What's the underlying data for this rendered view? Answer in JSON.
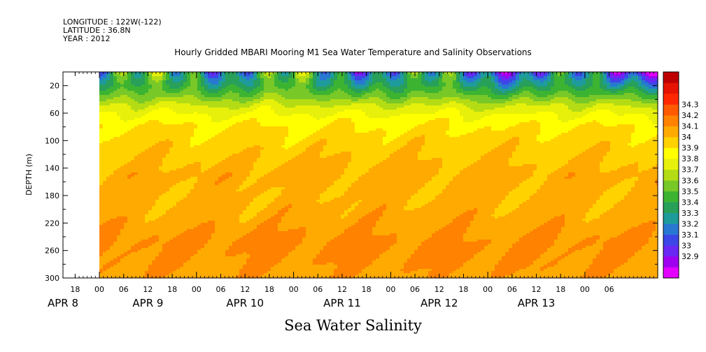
{
  "header": {
    "longitude": "LONGITUDE : 122W(-122)",
    "latitude": "LATITUDE : 36.8N",
    "year": "YEAR : 2012"
  },
  "chart_data": {
    "type": "heatmap",
    "title": "Hourly Gridded MBARI Mooring M1 Sea Water Temperature and Salinity Observations",
    "xlabel": "Sea Water Salinity",
    "ylabel": "DEPTH (m)",
    "ylim": [
      300,
      0
    ],
    "yticks": [
      20,
      60,
      100,
      140,
      180,
      220,
      260,
      300
    ],
    "xlim": [
      "2012-04-07T15:00",
      "2012-04-13T18:00"
    ],
    "data_start": "2012-04-08T00:00",
    "hour_ticks": [
      {
        "t": "2012-04-07T18:00",
        "label": "18"
      },
      {
        "t": "2012-04-08T00:00",
        "label": "00"
      },
      {
        "t": "2012-04-08T06:00",
        "label": "06"
      },
      {
        "t": "2012-04-08T12:00",
        "label": "12"
      },
      {
        "t": "2012-04-08T18:00",
        "label": "18"
      },
      {
        "t": "2012-04-09T00:00",
        "label": "00"
      },
      {
        "t": "2012-04-09T06:00",
        "label": "06"
      },
      {
        "t": "2012-04-09T12:00",
        "label": "12"
      },
      {
        "t": "2012-04-09T18:00",
        "label": "18"
      },
      {
        "t": "2012-04-10T00:00",
        "label": "00"
      },
      {
        "t": "2012-04-10T06:00",
        "label": "06"
      },
      {
        "t": "2012-04-10T12:00",
        "label": "12"
      },
      {
        "t": "2012-04-10T18:00",
        "label": "18"
      },
      {
        "t": "2012-04-11T00:00",
        "label": "00"
      },
      {
        "t": "2012-04-11T06:00",
        "label": "06"
      },
      {
        "t": "2012-04-11T12:00",
        "label": "12"
      },
      {
        "t": "2012-04-11T18:00",
        "label": "18"
      },
      {
        "t": "2012-04-12T00:00",
        "label": "00"
      },
      {
        "t": "2012-04-12T06:00",
        "label": "06"
      },
      {
        "t": "2012-04-12T12:00",
        "label": "12"
      },
      {
        "t": "2012-04-12T18:00",
        "label": "18"
      },
      {
        "t": "2012-04-13T00:00",
        "label": "00"
      },
      {
        "t": "2012-04-13T06:00",
        "label": "06"
      }
    ],
    "day_labels": [
      {
        "t": "2012-04-07T15:00",
        "label": "APR  8"
      },
      {
        "t": "2012-04-08T12:00",
        "label": "APR  9"
      },
      {
        "t": "2012-04-09T12:00",
        "label": "APR 10"
      },
      {
        "t": "2012-04-10T12:00",
        "label": "APR 11"
      },
      {
        "t": "2012-04-11T12:00",
        "label": "APR 12"
      },
      {
        "t": "2012-04-12T12:00",
        "label": "APR 13"
      }
    ],
    "colorbar": {
      "levels": [
        32.9,
        33,
        33.1,
        33.2,
        33.3,
        33.4,
        33.5,
        33.6,
        33.7,
        33.8,
        33.9,
        34,
        34.1,
        34.2,
        34.3
      ],
      "colors": [
        "#e400ff",
        "#a000f0",
        "#6a28f5",
        "#3c46e6",
        "#2878d2",
        "#1e9b9b",
        "#28a05a",
        "#3cb432",
        "#78c828",
        "#b4dc14",
        "#e6f00a",
        "#ffff00",
        "#ffd200",
        "#ffaa00",
        "#ff8200",
        "#ff5a00",
        "#ff2800",
        "#e61400",
        "#be0000"
      ]
    },
    "salinity_profile": [
      {
        "depth": 5,
        "salinity": 33.45
      },
      {
        "depth": 20,
        "salinity": 33.5
      },
      {
        "depth": 35,
        "salinity": 33.65
      },
      {
        "depth": 50,
        "salinity": 33.82
      },
      {
        "depth": 65,
        "salinity": 33.93
      },
      {
        "depth": 80,
        "salinity": 34.0
      },
      {
        "depth": 100,
        "salinity": 34.05
      },
      {
        "depth": 130,
        "salinity": 34.1
      },
      {
        "depth": 150,
        "salinity": 34.14
      },
      {
        "depth": 180,
        "salinity": 34.12
      },
      {
        "depth": 210,
        "salinity": 34.15
      },
      {
        "depth": 250,
        "salinity": 34.22
      },
      {
        "depth": 280,
        "salinity": 34.2
      },
      {
        "depth": 300,
        "salinity": 34.17
      }
    ]
  }
}
